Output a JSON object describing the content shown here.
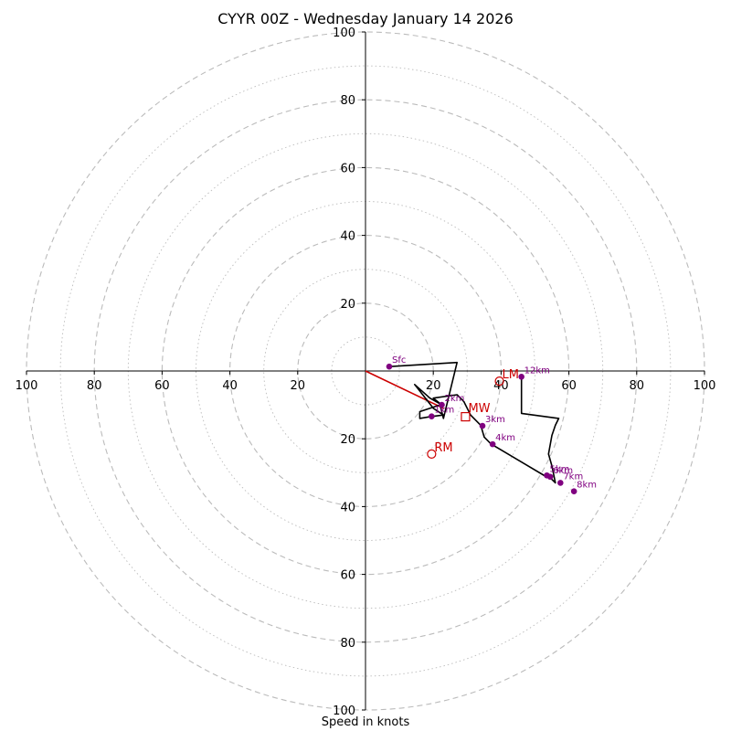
{
  "chart_data": {
    "type": "hodograph",
    "title": "CYYR 00Z - Wednesday January 14 2026",
    "xlabel": "Speed in knots",
    "max_speed": 100,
    "ring_labels": [
      "20",
      "40",
      "60",
      "80",
      "100"
    ],
    "x_tick_labels": [
      "100",
      "80",
      "60",
      "40",
      "20",
      "20",
      "40",
      "60",
      "80",
      "100"
    ],
    "y_tick_labels_upper": [
      "20",
      "40",
      "60",
      "80",
      "100"
    ],
    "y_tick_labels_lower": [
      "20",
      "40",
      "60",
      "80",
      "100"
    ],
    "hodograph_trace": [
      [
        7,
        1.3
      ],
      [
        27,
        2.5
      ],
      [
        23,
        -14
      ],
      [
        22,
        -10
      ],
      [
        16,
        -12
      ],
      [
        16,
        -14
      ],
      [
        19,
        -13.5
      ],
      [
        23,
        -13
      ],
      [
        20,
        -11
      ],
      [
        14.5,
        -4
      ],
      [
        19,
        -8
      ],
      [
        22.5,
        -10
      ],
      [
        20,
        -8
      ],
      [
        27,
        -7
      ],
      [
        29,
        -9
      ],
      [
        31,
        -13
      ],
      [
        34,
        -16
      ],
      [
        35,
        -19.5
      ],
      [
        37,
        -21.5
      ],
      [
        53,
        -31
      ],
      [
        54,
        -31
      ],
      [
        56,
        -33
      ],
      [
        55,
        -28
      ],
      [
        54,
        -24.5
      ],
      [
        55,
        -19
      ],
      [
        56,
        -16
      ],
      [
        57,
        -14
      ],
      [
        46,
        -12.5
      ],
      [
        46,
        -5
      ],
      [
        46,
        -1.7
      ]
    ],
    "height_markers": [
      {
        "label": "Sfc",
        "u": 7,
        "v": 1.3
      },
      {
        "label": "1km",
        "u": 19.5,
        "v": -13.4
      },
      {
        "label": "2km",
        "u": 22.5,
        "v": -10
      },
      {
        "label": "3km",
        "u": 34.5,
        "v": -16.2
      },
      {
        "label": "4km",
        "u": 37.5,
        "v": -21.6
      },
      {
        "label": "5km",
        "u": 53.5,
        "v": -30.8
      },
      {
        "label": "6km",
        "u": 54.5,
        "v": -31.2
      },
      {
        "label": "7km",
        "u": 57.5,
        "v": -33
      },
      {
        "label": "8km",
        "u": 61.5,
        "v": -35.5
      },
      {
        "label": "12km",
        "u": 46,
        "v": -1.7
      }
    ],
    "storm_motion": {
      "mean_wind": {
        "label": "MW",
        "u": 29.5,
        "v": -13.5
      },
      "left_mover": {
        "label": "LM",
        "u": 39.5,
        "v": -3
      },
      "right_mover": {
        "label": "RM",
        "u": 19.5,
        "v": -24.5
      },
      "shear_vector": {
        "from": [
          0,
          0
        ],
        "to": [
          23,
          -11
        ]
      }
    },
    "colors": {
      "trace": "#000000",
      "marker": "#800080",
      "storm": "#cc0000",
      "grid": "#bbbbbb",
      "axis": "#000000"
    }
  }
}
